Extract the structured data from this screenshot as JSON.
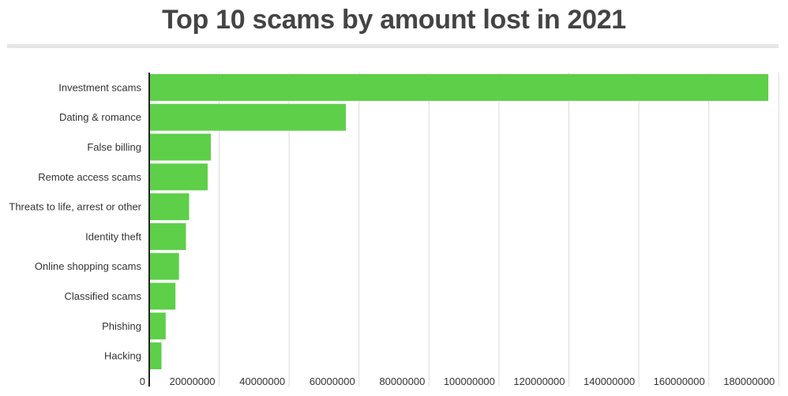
{
  "chart_data": {
    "type": "bar",
    "orientation": "horizontal",
    "title": "Top 10 scams by amount lost in 2021",
    "xlabel": "",
    "ylabel": "",
    "categories": [
      "Investment scams",
      "Dating & romance",
      "False billing",
      "Remote access scams",
      "Threats to life, arrest or other",
      "Identity theft",
      "Online shopping scams",
      "Classified scams",
      "Phishing",
      "Hacking"
    ],
    "values": [
      177000000,
      56200000,
      17600000,
      16700000,
      11400000,
      10500000,
      8500000,
      7500000,
      4700000,
      3500000
    ],
    "xlim": [
      0,
      180000000
    ],
    "ticks": [
      "0",
      "20000000",
      "40000000",
      "60000000",
      "80000000",
      "100000000",
      "120000000",
      "140000000",
      "160000000",
      "180000000"
    ],
    "grid": true,
    "legend": "none",
    "bar_color": "#5dcf48"
  }
}
